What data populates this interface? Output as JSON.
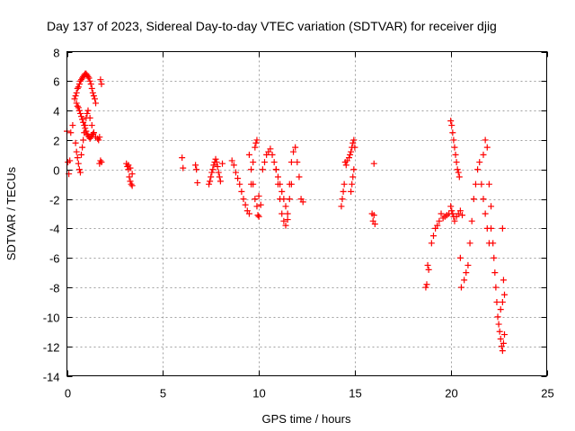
{
  "chart_data": {
    "type": "scatter",
    "title": "Day 137 of 2023, Sidereal Day-to-day VTEC variation (SDTVAR) for receiver djig",
    "xlabel": "GPS time / hours",
    "ylabel": "SDTVAR / TECUs",
    "xlim": [
      0,
      25
    ],
    "ylim": [
      -14,
      8
    ],
    "xticks": [
      0,
      5,
      10,
      15,
      20,
      25
    ],
    "yticks": [
      -14,
      -12,
      -10,
      -8,
      -6,
      -4,
      -2,
      0,
      2,
      4,
      6,
      8
    ],
    "grid": true,
    "marker": "+",
    "color": "#ff0000",
    "series": [
      {
        "name": "SDTVAR",
        "x": [
          0.0,
          0.05,
          0.1,
          0.15,
          0.2,
          0.3,
          0.4,
          0.45,
          0.5,
          0.55,
          0.6,
          0.65,
          0.7,
          0.75,
          0.8,
          0.85,
          0.9,
          0.95,
          1.0,
          1.05,
          1.1,
          1.15,
          1.2,
          1.25,
          1.3,
          1.35,
          1.4,
          1.45,
          1.5,
          0.5,
          0.55,
          0.6,
          0.65,
          0.7,
          0.75,
          0.8,
          0.85,
          0.9,
          0.95,
          1.0,
          1.05,
          1.1,
          1.15,
          1.2,
          1.25,
          1.3,
          1.35,
          1.4,
          0.45,
          0.5,
          0.55,
          0.6,
          0.65,
          0.7,
          0.75,
          0.8,
          0.85,
          0.9,
          0.95,
          1.0,
          1.05,
          1.1,
          1.2,
          1.3,
          1.4,
          1.5,
          1.6,
          1.65,
          1.7,
          1.75,
          1.8,
          1.7,
          1.75,
          1.8,
          3.1,
          3.15,
          3.2,
          3.25,
          3.3,
          3.35,
          3.4,
          3.2,
          3.3,
          3.4,
          6.0,
          6.05,
          6.7,
          6.75,
          6.8,
          7.4,
          7.45,
          7.5,
          7.55,
          7.6,
          7.65,
          7.7,
          7.75,
          7.8,
          7.85,
          7.9,
          7.95,
          8.0,
          8.1,
          8.6,
          8.7,
          8.8,
          8.9,
          9.0,
          9.1,
          9.2,
          9.3,
          9.4,
          9.5,
          9.6,
          9.7,
          9.8,
          9.85,
          9.9,
          9.95,
          10.0,
          9.5,
          9.6,
          9.7,
          9.8,
          9.9,
          10.0,
          10.1,
          10.2,
          10.3,
          10.4,
          10.5,
          10.6,
          10.7,
          10.8,
          10.9,
          11.0,
          11.1,
          11.2,
          11.3,
          11.4,
          11.5,
          11.6,
          11.7,
          11.8,
          11.9,
          12.0,
          12.1,
          12.2,
          12.3,
          10.9,
          11.0,
          11.1,
          11.2,
          11.3,
          11.4,
          11.5,
          11.6,
          11.7,
          14.3,
          14.35,
          14.4,
          14.45,
          14.5,
          14.55,
          14.6,
          14.7,
          14.75,
          14.8,
          14.85,
          14.9,
          14.95,
          15.0,
          14.8,
          14.85,
          14.9,
          14.95,
          15.9,
          15.95,
          16.0,
          16.0,
          16.05,
          18.7,
          18.75,
          18.8,
          18.85,
          19.0,
          19.1,
          19.2,
          19.3,
          19.4,
          19.5,
          19.6,
          19.7,
          19.8,
          19.9,
          20.0,
          20.05,
          20.1,
          20.15,
          20.2,
          20.3,
          20.4,
          20.5,
          20.6,
          20.0,
          20.05,
          20.1,
          20.15,
          20.2,
          20.25,
          20.3,
          20.35,
          20.4,
          20.45,
          20.5,
          20.55,
          20.7,
          20.8,
          20.9,
          21.0,
          21.1,
          21.2,
          21.3,
          21.4,
          21.5,
          21.6,
          21.7,
          21.8,
          21.9,
          22.0,
          21.7,
          21.8,
          21.9,
          22.0,
          22.1,
          22.1,
          22.2,
          22.25,
          22.3,
          22.35,
          22.4,
          22.45,
          22.5,
          22.55,
          22.6,
          22.65,
          22.7,
          22.75,
          22.8,
          22.6,
          22.7,
          22.8,
          22.7,
          22.75
        ],
        "y": [
          2.6,
          0.5,
          -0.3,
          0.6,
          2.5,
          3.0,
          4.8,
          5.0,
          5.2,
          5.5,
          5.6,
          5.8,
          6.0,
          6.1,
          6.2,
          6.3,
          6.4,
          6.5,
          6.5,
          6.4,
          6.3,
          6.2,
          6.0,
          5.8,
          5.5,
          5.2,
          5.0,
          4.8,
          4.5,
          4.5,
          4.3,
          4.2,
          4.0,
          3.8,
          3.6,
          3.4,
          3.2,
          3.0,
          2.8,
          2.6,
          2.4,
          2.3,
          2.2,
          2.1,
          2.2,
          2.3,
          2.4,
          2.5,
          1.8,
          1.2,
          0.8,
          0.4,
          0.0,
          -0.2,
          1.0,
          1.5,
          2.0,
          2.5,
          3.0,
          3.5,
          3.8,
          4.0,
          3.5,
          3.0,
          2.5,
          2.2,
          2.1,
          2.0,
          2.2,
          6.1,
          5.8,
          0.4,
          0.6,
          0.5,
          0.4,
          0.2,
          0.0,
          -0.5,
          -0.8,
          -1.0,
          -1.1,
          0.3,
          0.1,
          -0.3,
          0.8,
          0.1,
          0.3,
          0.0,
          -0.9,
          -1.0,
          -0.8,
          -0.5,
          -0.2,
          0.0,
          0.3,
          0.5,
          0.7,
          0.5,
          0.2,
          -0.2,
          -0.5,
          -0.8,
          0.4,
          0.6,
          0.3,
          -0.2,
          -0.6,
          -1.0,
          -1.5,
          -2.0,
          -2.4,
          -2.8,
          -3.0,
          -1.0,
          0.5,
          1.5,
          1.8,
          2.0,
          -3.1,
          -3.2,
          1.0,
          0.0,
          -1.0,
          -2.0,
          -2.5,
          -1.8,
          -2.4,
          0.0,
          0.5,
          1.0,
          1.2,
          1.4,
          1.0,
          0.5,
          0.0,
          -1.0,
          -2.0,
          -3.0,
          -3.5,
          -3.8,
          -3.4,
          -1.0,
          0.5,
          1.2,
          1.5,
          0.5,
          -0.5,
          -2.0,
          -2.2,
          0.0,
          -0.5,
          -1.0,
          -1.5,
          -2.0,
          -2.5,
          -3.0,
          -2.0,
          -1.0,
          -2.5,
          -2.0,
          -1.5,
          -1.0,
          0.5,
          0.3,
          0.6,
          0.8,
          1.0,
          1.2,
          1.5,
          1.8,
          2.0,
          1.5,
          -1.5,
          -1.0,
          -0.5,
          0.0,
          -3.0,
          -3.5,
          0.4,
          -3.1,
          -3.7,
          -8.0,
          -7.8,
          -6.5,
          -6.8,
          -5.0,
          -4.5,
          -4.0,
          -3.8,
          -3.5,
          -3.0,
          -3.3,
          -3.2,
          -3.1,
          -3.0,
          -2.5,
          -2.8,
          -3.0,
          -3.2,
          -3.5,
          -3.2,
          -3.0,
          -2.8,
          -3.1,
          3.3,
          3.0,
          2.5,
          2.0,
          1.5,
          1.0,
          0.5,
          0.0,
          -0.2,
          -0.5,
          -6.0,
          -8.0,
          -7.5,
          -7.0,
          -6.5,
          -5.0,
          -3.5,
          -2.0,
          -1.0,
          0.0,
          0.5,
          -1.0,
          -2.0,
          -3.0,
          -4.0,
          -5.0,
          1.0,
          2.0,
          1.5,
          -1.0,
          -2.5,
          -4.0,
          -5.0,
          -6.0,
          -7.0,
          -8.0,
          -9.0,
          -10.0,
          -10.5,
          -11.0,
          -11.5,
          -12.0,
          -12.3,
          -11.8,
          -11.2,
          -9.5,
          -9.0,
          -8.5,
          -4.0,
          -7.5
        ]
      }
    ]
  }
}
